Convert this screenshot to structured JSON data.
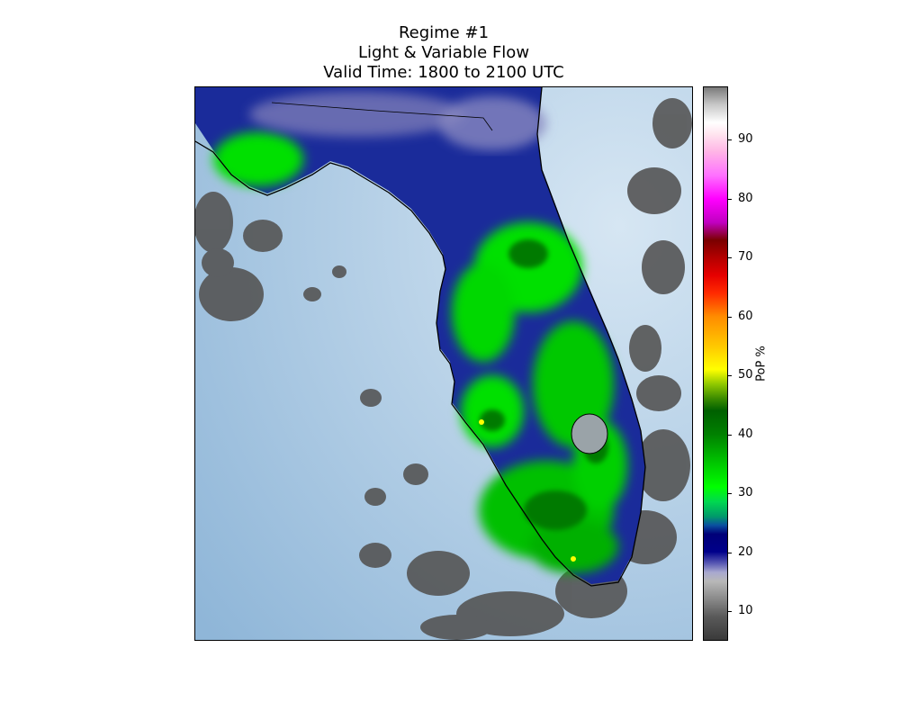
{
  "title": {
    "line1": "Regime #1",
    "line2": "Light & Variable Flow",
    "line3": "Valid Time: 1800 to 2100 UTC"
  },
  "colorbar": {
    "label": "PoP %",
    "min": 5,
    "max": 99,
    "ticks": [
      10,
      20,
      30,
      40,
      50,
      60,
      70,
      80,
      90
    ],
    "stops": [
      {
        "v": 5,
        "c": "#3a3a3a"
      },
      {
        "v": 9,
        "c": "#5a5a5a"
      },
      {
        "v": 12,
        "c": "#8a8a8a"
      },
      {
        "v": 15,
        "c": "#b8b8b8"
      },
      {
        "v": 16.5,
        "c": "#a8a8cf"
      },
      {
        "v": 18,
        "c": "#5a5ab4"
      },
      {
        "v": 20,
        "c": "#00008a"
      },
      {
        "v": 23,
        "c": "#000078"
      },
      {
        "v": 24.5,
        "c": "#0a50a0"
      },
      {
        "v": 26,
        "c": "#009a6a"
      },
      {
        "v": 28.5,
        "c": "#00d850"
      },
      {
        "v": 31,
        "c": "#00ff00"
      },
      {
        "v": 35,
        "c": "#00c800"
      },
      {
        "v": 40,
        "c": "#008000"
      },
      {
        "v": 44,
        "c": "#006000"
      },
      {
        "v": 46,
        "c": "#3a8a00"
      },
      {
        "v": 48.5,
        "c": "#90c800"
      },
      {
        "v": 51,
        "c": "#ffff00"
      },
      {
        "v": 55,
        "c": "#ffc800"
      },
      {
        "v": 60,
        "c": "#ff8c00"
      },
      {
        "v": 64,
        "c": "#ff2a00"
      },
      {
        "v": 67,
        "c": "#e60000"
      },
      {
        "v": 70,
        "c": "#b40000"
      },
      {
        "v": 73,
        "c": "#7a0000"
      },
      {
        "v": 76,
        "c": "#c000c0"
      },
      {
        "v": 80,
        "c": "#ff00ff"
      },
      {
        "v": 84,
        "c": "#ff70ff"
      },
      {
        "v": 88,
        "c": "#ffb4e6"
      },
      {
        "v": 91,
        "c": "#ffe4ef"
      },
      {
        "v": 93,
        "c": "#ffffff"
      },
      {
        "v": 96,
        "c": "#c8c8c8"
      },
      {
        "v": 99,
        "c": "#7a7a7a"
      }
    ]
  },
  "map": {
    "water_color_light": "#d6e6f3",
    "water_color_dark": "#8fb6d8",
    "border_color": "#000000"
  }
}
